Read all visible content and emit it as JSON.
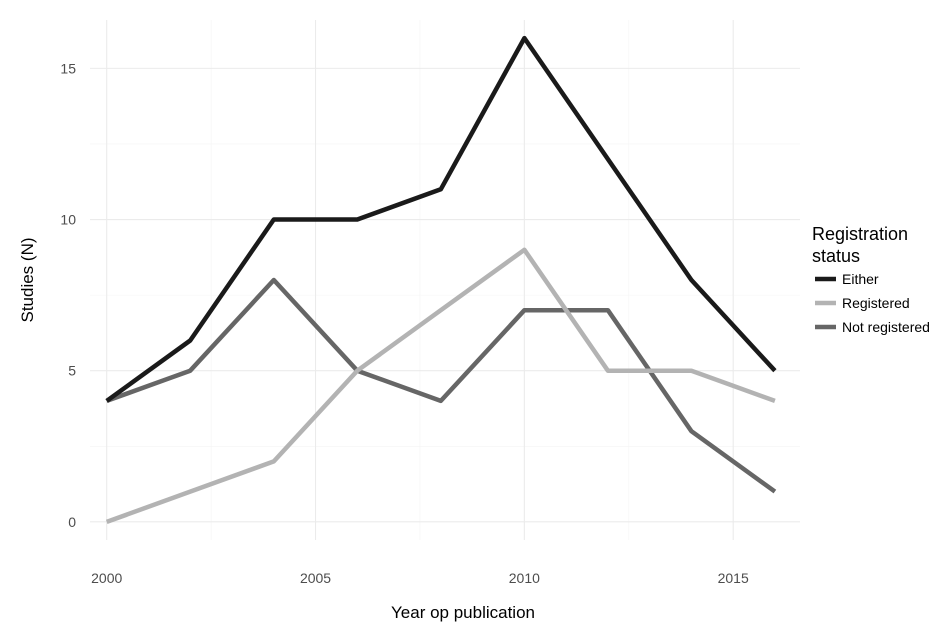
{
  "chart_data": {
    "type": "line",
    "xlabel": "Year op publication",
    "ylabel": "Studies (N)",
    "xlim": [
      1999.6,
      2016.6
    ],
    "ylim": [
      -0.6,
      16.6
    ],
    "x_ticks": [
      2000,
      2005,
      2010,
      2015
    ],
    "y_ticks": [
      0,
      5,
      10,
      15
    ],
    "grid": true,
    "legend": {
      "title": [
        "Registration",
        "status"
      ],
      "position": "right"
    },
    "x": [
      2000,
      2002,
      2004,
      2006,
      2008,
      2010,
      2012,
      2014,
      2016
    ],
    "series": [
      {
        "name": "Either",
        "color": "#1a1a1a",
        "values": [
          4,
          6,
          10,
          10,
          11,
          16,
          12,
          8,
          5
        ]
      },
      {
        "name": "Registered",
        "color": "#b3b3b3",
        "values": [
          0,
          1,
          2,
          5,
          7,
          9,
          5,
          5,
          4
        ]
      },
      {
        "name": "Not registered",
        "color": "#666666",
        "values": [
          4,
          5,
          8,
          5,
          4,
          7,
          7,
          3,
          1
        ]
      }
    ]
  }
}
